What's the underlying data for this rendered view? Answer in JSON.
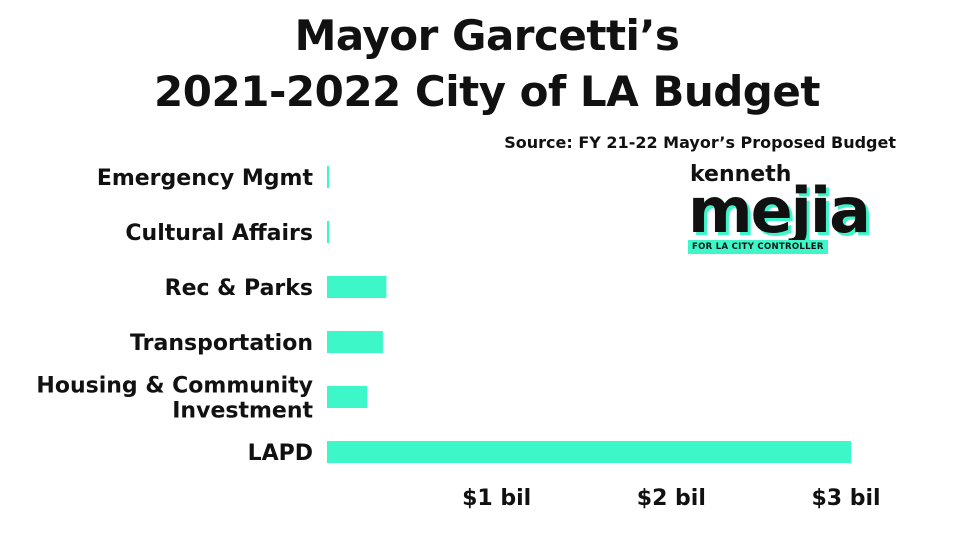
{
  "chart_data": {
    "type": "bar",
    "orientation": "horizontal",
    "title_line1": "Mayor Garcetti’s",
    "title_line2": "2021-2022 City of LA Budget",
    "source": "Source: FY 21-22 Mayor’s Proposed Budget",
    "categories": [
      [
        "Emergency  Mgmt"
      ],
      [
        "Cultural Affairs"
      ],
      [
        "Rec & Parks"
      ],
      [
        "Transportation"
      ],
      [
        "Housing & Community",
        "Investment"
      ],
      [
        "LAPD"
      ]
    ],
    "values": [
      0.006,
      0.012,
      0.34,
      0.32,
      0.23,
      3.0
    ],
    "unit": "billion USD",
    "xlim": [
      0,
      3
    ],
    "xticks": [
      1,
      2,
      3
    ],
    "xtick_labels": [
      "$1 bil",
      "$2 bil",
      "$3 bil"
    ],
    "bar_color": "#3ef7c8",
    "grid": false,
    "legend": "none"
  },
  "logo": {
    "line1": "kenneth",
    "line2": "mejia",
    "line3": "FOR LA CITY CONTROLLER",
    "accent": "#3ef7c8"
  }
}
